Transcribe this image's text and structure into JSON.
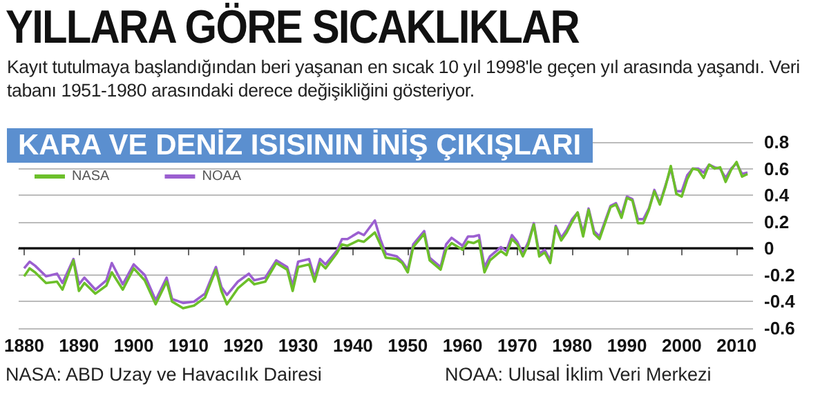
{
  "chart_data": {
    "type": "line",
    "title": "YILLARA GÖRE SICAKLIKLAR",
    "subtitle": "Kayıt tutulmaya başlandığından beri yaşanan en sıcak 10 yıl 1998'le geçen yıl arasında yaşandı. Veri tabanı 1951-1980 arasındaki derece değişikliğini gösteriyor.",
    "annotations": [
      "KARA VE DENİZ ISISININ İNİŞ ÇIKIŞLARI",
      "NASA: ABD Uzay ve Havacılık Dairesi",
      "NOAA: Ulusal İklim Veri Merkezi"
    ],
    "x": [
      1880,
      1881,
      1882,
      1884,
      1886,
      1887,
      1889,
      1890,
      1891,
      1893,
      1895,
      1896,
      1898,
      1900,
      1902,
      1904,
      1906,
      1907,
      1909,
      1911,
      1913,
      1915,
      1916,
      1917,
      1919,
      1921,
      1922,
      1924,
      1926,
      1928,
      1929,
      1930,
      1932,
      1933,
      1934,
      1935,
      1937,
      1938,
      1939,
      1941,
      1942,
      1944,
      1945,
      1946,
      1948,
      1949,
      1950,
      1951,
      1953,
      1954,
      1956,
      1957,
      1958,
      1960,
      1961,
      1962,
      1963,
      1964,
      1965,
      1967,
      1968,
      1969,
      1970,
      1971,
      1972,
      1973,
      1974,
      1975,
      1976,
      1977,
      1978,
      1979,
      1980,
      1981,
      1982,
      1983,
      1984,
      1985,
      1987,
      1988,
      1989,
      1990,
      1991,
      1992,
      1993,
      1994,
      1995,
      1996,
      1997,
      1998,
      1999,
      2000,
      2001,
      2002,
      2003,
      2004,
      2005,
      2006,
      2007,
      2008,
      2009,
      2010,
      2011,
      2012
    ],
    "series": [
      {
        "name": "NASA",
        "color": "#6cbf2a",
        "values": [
          -0.21,
          -0.15,
          -0.18,
          -0.26,
          -0.25,
          -0.31,
          -0.09,
          -0.32,
          -0.26,
          -0.34,
          -0.28,
          -0.18,
          -0.31,
          -0.15,
          -0.24,
          -0.42,
          -0.25,
          -0.4,
          -0.45,
          -0.43,
          -0.37,
          -0.16,
          -0.32,
          -0.42,
          -0.3,
          -0.23,
          -0.27,
          -0.25,
          -0.11,
          -0.16,
          -0.32,
          -0.14,
          -0.12,
          -0.25,
          -0.11,
          -0.15,
          -0.04,
          0.03,
          0.02,
          0.06,
          0.05,
          0.12,
          0.03,
          -0.07,
          -0.08,
          -0.11,
          -0.18,
          0.01,
          0.11,
          -0.09,
          -0.16,
          -0.01,
          0.04,
          -0.01,
          0.05,
          0.04,
          0.06,
          -0.18,
          -0.09,
          -0.02,
          -0.05,
          0.07,
          0.03,
          -0.06,
          0.03,
          0.18,
          -0.06,
          -0.03,
          -0.11,
          0.16,
          0.06,
          0.12,
          0.2,
          0.27,
          0.09,
          0.29,
          0.11,
          0.07,
          0.31,
          0.33,
          0.23,
          0.38,
          0.36,
          0.19,
          0.19,
          0.29,
          0.43,
          0.33,
          0.46,
          0.62,
          0.41,
          0.39,
          0.52,
          0.6,
          0.59,
          0.53,
          0.63,
          0.6,
          0.61,
          0.5,
          0.59,
          0.65,
          0.54,
          0.56
        ]
      },
      {
        "name": "NOAA",
        "color": "#9b5fd0",
        "values": [
          -0.15,
          -0.1,
          -0.13,
          -0.21,
          -0.19,
          -0.26,
          -0.08,
          -0.27,
          -0.22,
          -0.31,
          -0.24,
          -0.11,
          -0.27,
          -0.12,
          -0.2,
          -0.39,
          -0.22,
          -0.38,
          -0.41,
          -0.4,
          -0.34,
          -0.14,
          -0.29,
          -0.35,
          -0.25,
          -0.19,
          -0.24,
          -0.22,
          -0.09,
          -0.14,
          -0.28,
          -0.1,
          -0.08,
          -0.22,
          -0.08,
          -0.12,
          -0.02,
          0.07,
          0.07,
          0.12,
          0.1,
          0.21,
          0.07,
          -0.04,
          -0.06,
          -0.1,
          -0.16,
          0.03,
          0.13,
          -0.07,
          -0.14,
          0.03,
          0.08,
          0.02,
          0.09,
          0.09,
          0.1,
          -0.14,
          -0.06,
          0.01,
          -0.02,
          0.1,
          0.05,
          -0.04,
          0.05,
          0.19,
          -0.04,
          -0.01,
          -0.09,
          0.17,
          0.08,
          0.14,
          0.22,
          0.27,
          0.12,
          0.3,
          0.13,
          0.09,
          0.32,
          0.34,
          0.25,
          0.39,
          0.37,
          0.22,
          0.22,
          0.3,
          0.44,
          0.34,
          0.47,
          0.6,
          0.43,
          0.43,
          0.55,
          0.6,
          0.6,
          0.57,
          0.63,
          0.61,
          0.6,
          0.53,
          0.6,
          0.64,
          0.56,
          0.57
        ]
      }
    ],
    "xlim": [
      1879,
      2013
    ],
    "xticks": [
      1880,
      1890,
      1900,
      1910,
      1920,
      1930,
      1940,
      1950,
      1960,
      1970,
      1980,
      1990,
      2000,
      2010
    ],
    "ylim": [
      -0.6,
      0.8
    ],
    "yticks": [
      -0.6,
      -0.4,
      -0.2,
      0,
      0.2,
      0.4,
      0.6,
      0.8
    ],
    "ref_lines": [
      {
        "axis": "y",
        "value": 0,
        "color": "#000000"
      }
    ],
    "grid": "y",
    "legend": "top left",
    "marker": "none",
    "line_style": "solid"
  }
}
